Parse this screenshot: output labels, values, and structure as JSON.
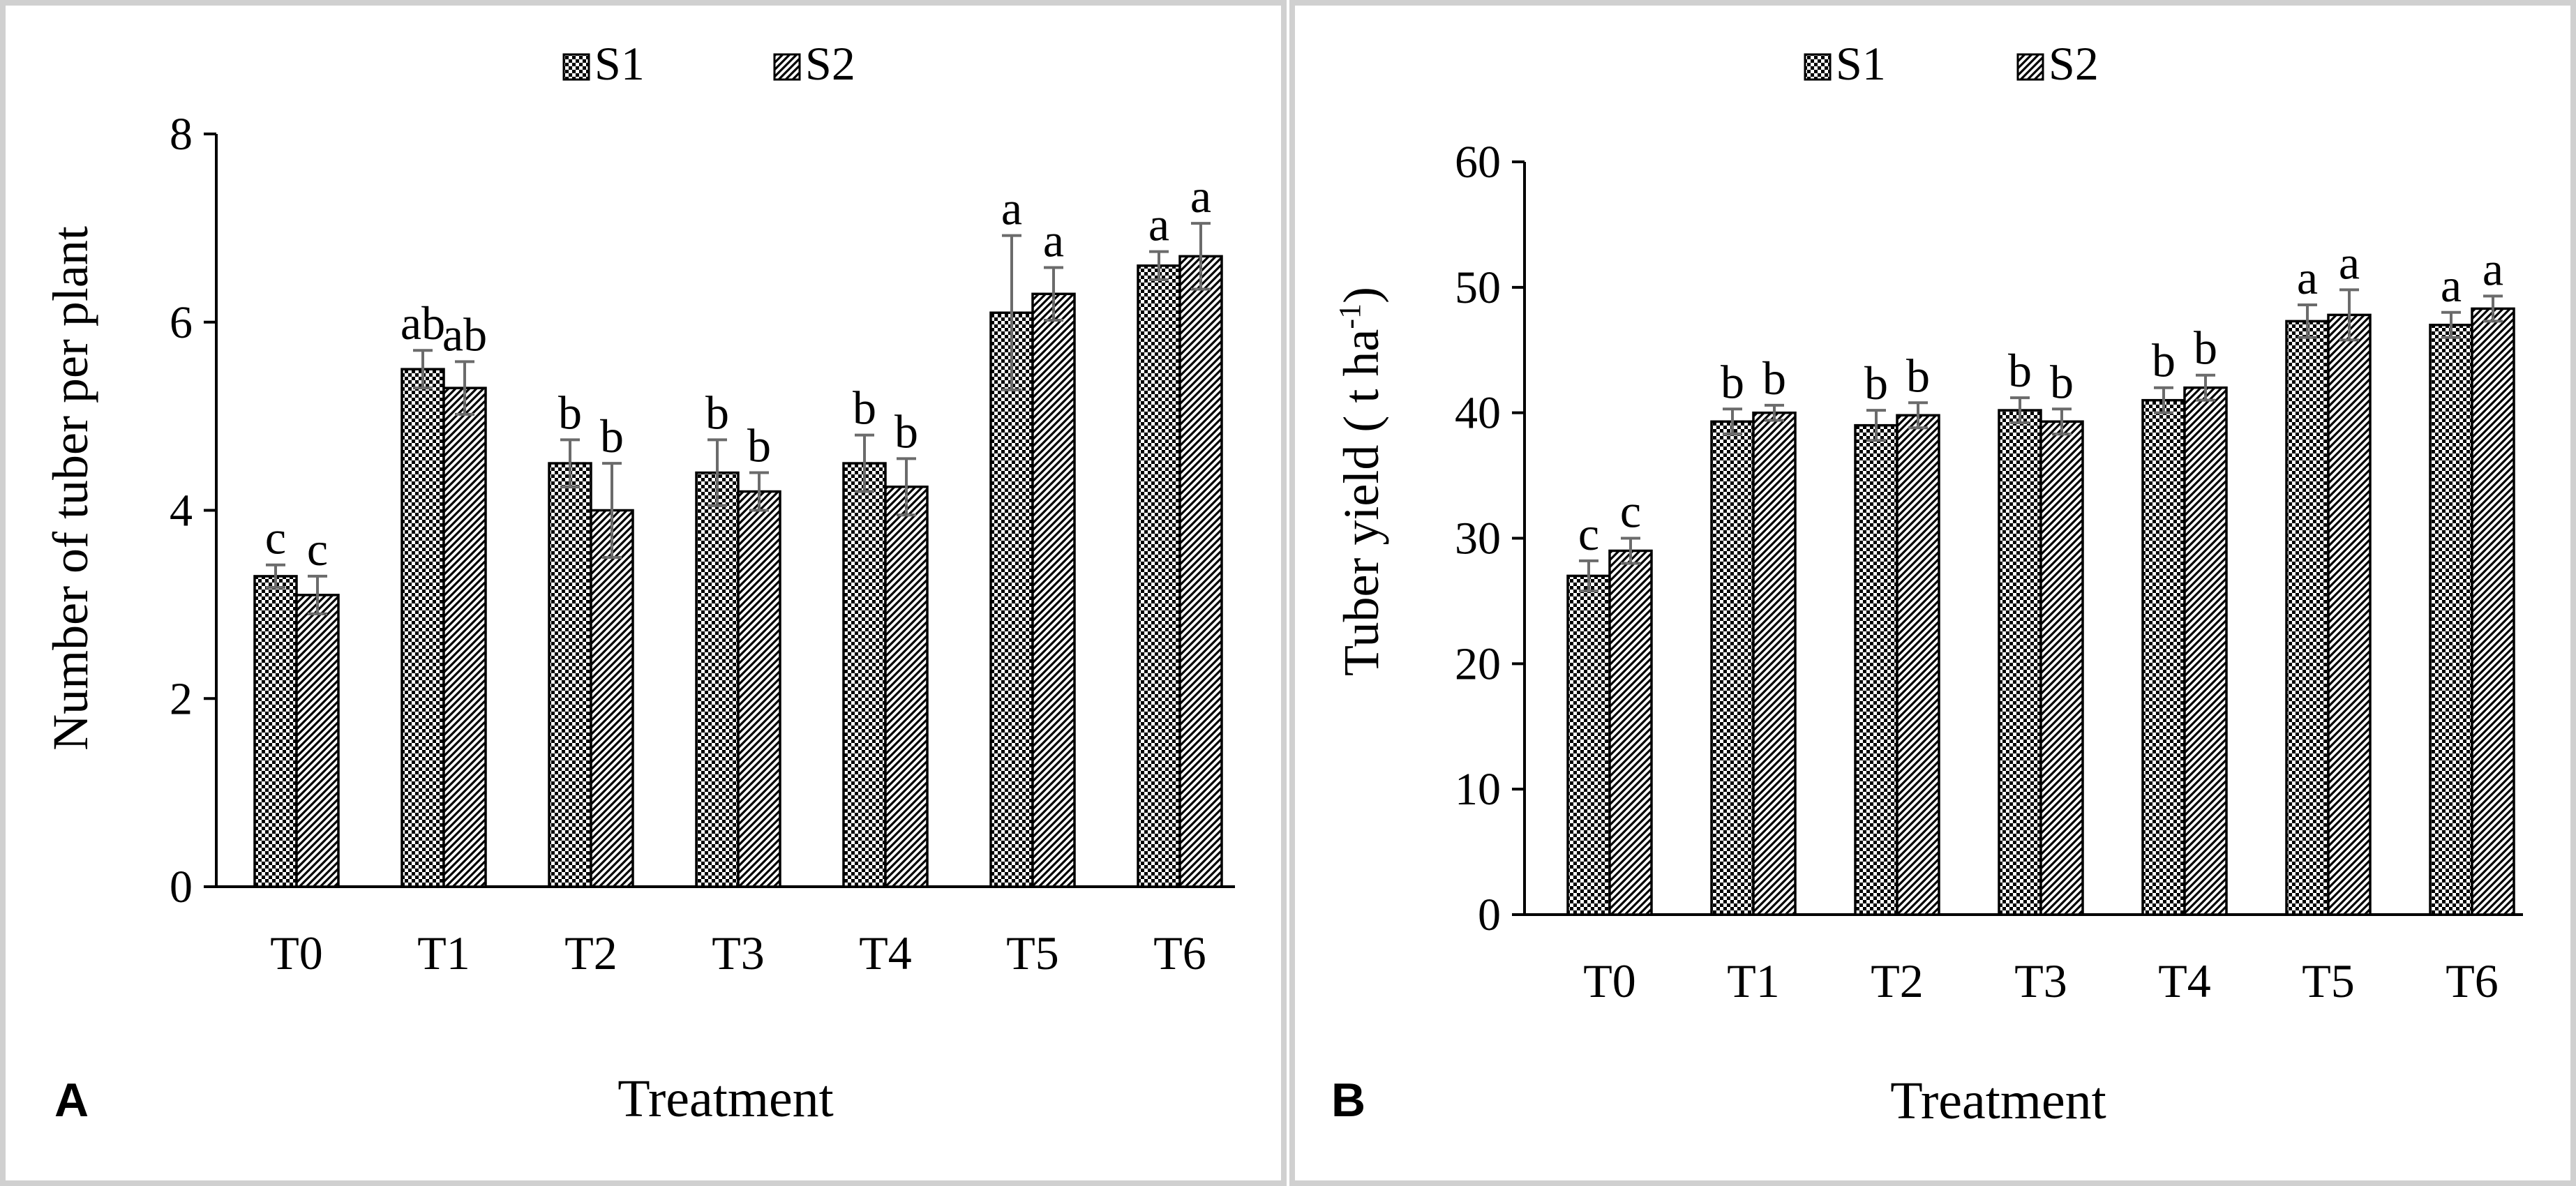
{
  "panel_labels": [
    "A",
    "B"
  ],
  "chart_data": [
    {
      "type": "bar",
      "panel": "A",
      "title": "",
      "xlabel": "Treatment",
      "ylabel": "Number of tuber per plant",
      "categories": [
        "T0",
        "T1",
        "T2",
        "T3",
        "T4",
        "T5",
        "T6"
      ],
      "ylim": [
        0,
        8
      ],
      "yticks": [
        0,
        2,
        4,
        6,
        8
      ],
      "grid": false,
      "legend": "top-center",
      "series": [
        {
          "name": "S1",
          "pattern": "checkered",
          "values": [
            3.3,
            5.5,
            4.5,
            4.4,
            4.5,
            6.1,
            6.6
          ],
          "errors": [
            0.12,
            0.2,
            0.25,
            0.35,
            0.3,
            0.82,
            0.15
          ],
          "letters": [
            "c",
            "ab",
            "b",
            "b",
            "b",
            "a",
            "a"
          ]
        },
        {
          "name": "S2",
          "pattern": "diagonal",
          "values": [
            3.1,
            5.3,
            4.0,
            4.2,
            4.25,
            6.3,
            6.7
          ],
          "errors": [
            0.2,
            0.28,
            0.5,
            0.2,
            0.3,
            0.28,
            0.35
          ],
          "letters": [
            "c",
            "ab",
            "b",
            "b",
            "b",
            "a",
            "a"
          ]
        }
      ]
    },
    {
      "type": "bar",
      "panel": "B",
      "title": "",
      "xlabel": "Treatment",
      "ylabel": "Tuber yield ( t ha",
      "ylabel_sup": "-1",
      "ylabel_end": ")",
      "categories": [
        "T0",
        "T1",
        "T2",
        "T3",
        "T4",
        "T5",
        "T6"
      ],
      "ylim": [
        0,
        60
      ],
      "yticks": [
        0,
        10,
        20,
        30,
        40,
        50,
        60
      ],
      "grid": false,
      "legend": "top-center",
      "series": [
        {
          "name": "S1",
          "pattern": "checkered",
          "values": [
            27.0,
            39.3,
            39.0,
            40.2,
            41.0,
            47.3,
            47.0
          ],
          "errors": [
            1.2,
            1.0,
            1.2,
            1.0,
            1.0,
            1.3,
            1.0
          ],
          "letters": [
            "c",
            "b",
            "b",
            "b",
            "b",
            "a",
            "a"
          ]
        },
        {
          "name": "S2",
          "pattern": "diagonal",
          "values": [
            29.0,
            40.0,
            39.8,
            39.3,
            42.0,
            47.8,
            48.3
          ],
          "errors": [
            1.0,
            0.6,
            1.0,
            1.0,
            1.0,
            2.0,
            1.0
          ],
          "letters": [
            "c",
            "b",
            "b",
            "b",
            "b",
            "a",
            "a"
          ]
        }
      ]
    }
  ]
}
